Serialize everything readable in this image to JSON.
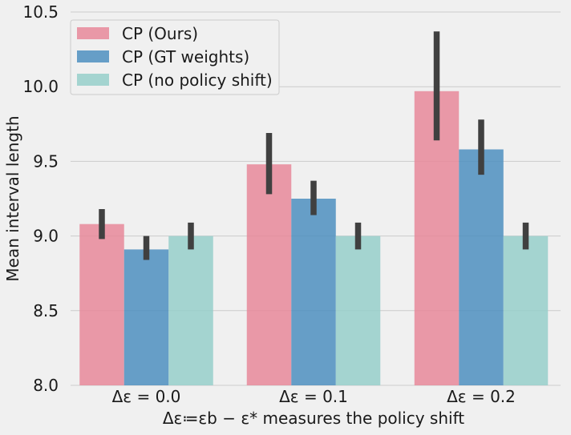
{
  "chart_data": {
    "type": "bar",
    "xlabel": "Δε≔εb − ε* measures the policy shift",
    "ylabel": "Mean interval length",
    "ylim": [
      8.0,
      10.5
    ],
    "yticks": [
      "8.0",
      "8.5",
      "9.0",
      "9.5",
      "10.0",
      "10.5"
    ],
    "grid": true,
    "legend_position": "top-left",
    "categories": [
      "Δε = 0.0",
      "Δε = 0.1",
      "Δε = 0.2"
    ],
    "series": [
      {
        "name": "CP (Ours)",
        "color": "#e8889a",
        "values": [
          9.08,
          9.48,
          9.97
        ],
        "error_low": [
          8.98,
          9.28,
          9.64
        ],
        "error_high": [
          9.18,
          9.69,
          10.37
        ]
      },
      {
        "name": "CP (GT weights)",
        "color": "#4d8fbf",
        "values": [
          8.91,
          9.25,
          9.58
        ],
        "error_low": [
          8.84,
          9.14,
          9.41
        ],
        "error_high": [
          9.0,
          9.37,
          9.78
        ]
      },
      {
        "name": "CP (no policy shift)",
        "color": "#96cfca",
        "values": [
          9.0,
          9.0,
          9.0
        ],
        "error_low": [
          8.91,
          8.91,
          8.91
        ],
        "error_high": [
          9.09,
          9.09,
          9.09
        ]
      }
    ]
  }
}
